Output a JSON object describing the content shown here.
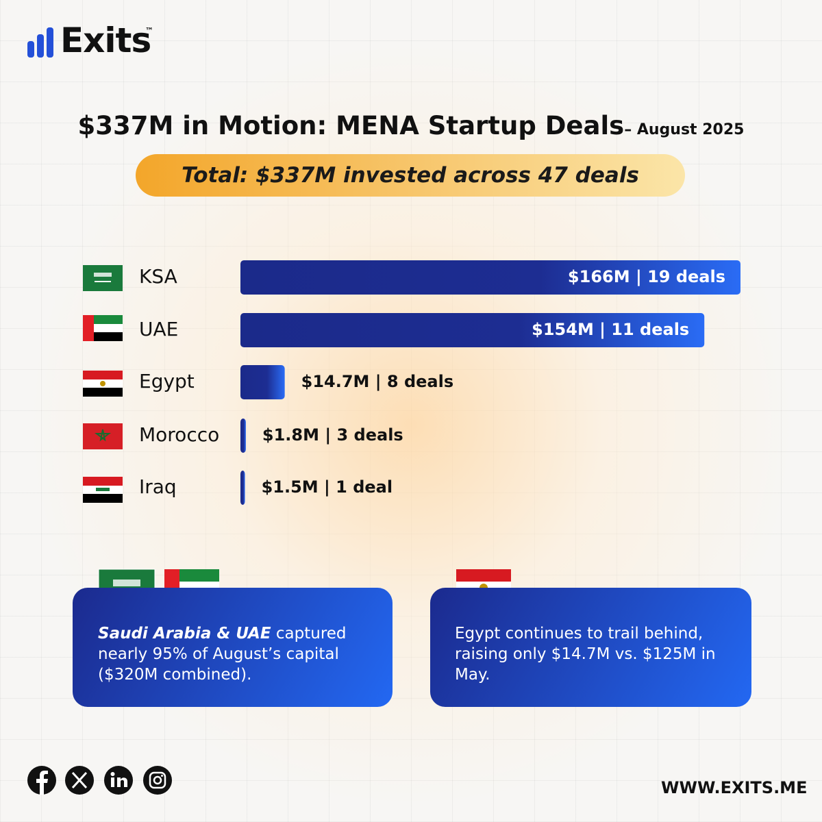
{
  "brand": {
    "name": "Exits",
    "mark": "™",
    "website": "WWW.EXITS.ME"
  },
  "chart_data": {
    "type": "bar",
    "orientation": "horizontal",
    "title": "$337M in Motion: MENA Startup Deals",
    "title_suffix": "– August 2025",
    "subtitle": "Total: $337M invested across 47 deals",
    "categories": [
      "KSA",
      "UAE",
      "Egypt",
      "Morocco",
      "Iraq"
    ],
    "values": [
      166,
      154,
      14.7,
      1.8,
      1.5
    ],
    "value_labels": [
      "$166M | 19 deals",
      "$154M | 11 deals",
      "$14.7M | 8 deals",
      "$1.8M | 3 deals",
      "$1.5M | 1 deal"
    ],
    "color": "#1f3fc8"
  },
  "cards": [
    {
      "emphasis": "Saudi Arabia & UAE",
      "text": " captured nearly 95% of August’s capital ($320M combined)."
    },
    {
      "text": "Egypt continues to trail behind, raising only $14.7M vs. $125M in May."
    }
  ]
}
